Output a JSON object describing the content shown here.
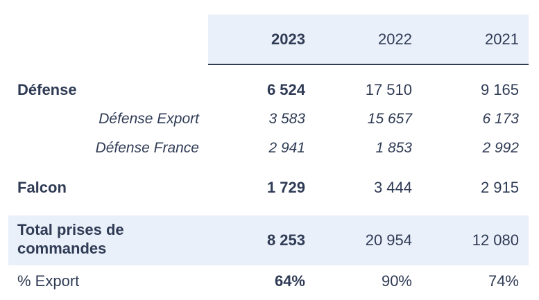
{
  "header": {
    "years": [
      "2023",
      "2022",
      "2021"
    ]
  },
  "rows": {
    "defense": {
      "label": "Défense",
      "values": [
        "6 524",
        "17 510",
        "9 165"
      ]
    },
    "defense_export": {
      "label": "Défense Export",
      "values": [
        "3 583",
        "15 657",
        "6 173"
      ]
    },
    "defense_france": {
      "label": "Défense France",
      "values": [
        "2 941",
        "1 853",
        "2 992"
      ]
    },
    "falcon": {
      "label": "Falcon",
      "values": [
        "1 729",
        "3 444",
        "2 915"
      ]
    },
    "total": {
      "label": "Total prises de commandes",
      "values": [
        "8 253",
        "20 954",
        "12 080"
      ]
    },
    "export_pct": {
      "label": "% Export",
      "values": [
        "64%",
        "90%",
        "74%"
      ]
    }
  },
  "colors": {
    "text": "#2f3b55",
    "header_bg": "#e9f0f9",
    "rule": "#2f3b55"
  }
}
